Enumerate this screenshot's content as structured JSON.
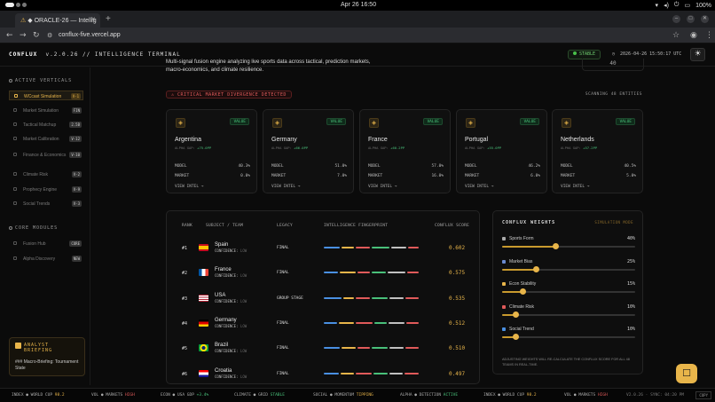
{
  "os": {
    "date": "Apr 26  16:50",
    "battery": "100%"
  },
  "browser": {
    "tab_title": "◆ ORACLE-26 — Intellig",
    "url": "conflux-five.vercel.app"
  },
  "header": {
    "logo": "CONFLUX",
    "version": "v.2.0.26 // INTELLIGENCE TERMINAL",
    "status": "STABLE",
    "clock": "2026-04-26 15:50:17 UTC"
  },
  "sidebar": {
    "section1": "ACTIVE VERTICALS",
    "items": [
      {
        "label": "WCcast Simulation",
        "badge": "V-1"
      },
      {
        "label": "Market Simulation",
        "badge": "FIN"
      },
      {
        "label": "Tactical Matchup",
        "badge": "2.5B"
      },
      {
        "label": "Market Calibration",
        "badge": "V-12"
      },
      {
        "label": "Finance & Economics",
        "badge": "V-10"
      },
      {
        "label": "Climate Risk",
        "badge": "V-2"
      },
      {
        "label": "Prophecy Engine",
        "badge": "V-9"
      },
      {
        "label": "Social Trends",
        "badge": "V-3"
      }
    ],
    "section2": "CORE MODULES",
    "modules": [
      {
        "label": "Fusion Hub",
        "badge": "CORE"
      },
      {
        "label": "Alpha Discovery",
        "badge": "NEW"
      }
    ],
    "briefing": {
      "title": "ANALYST BRIEFING",
      "desc": "### Macro-Briefing: Tournament State"
    }
  },
  "main": {
    "intro_line1": "Multi-signal fusion engine analyzing live sports data across tactical, prediction markets,",
    "intro_line2": "macro-economics, and climate resilience.",
    "fade_value": "40",
    "alert": "CRITICAL MARKET DIVERGENCE DETECTED",
    "scanning": "SCANNING 48 ENTITIES",
    "cards": [
      {
        "name": "Argentina",
        "badge": "VALUE",
        "alpha_label": "ALPHA GAP:",
        "alpha": "+75.0PP",
        "model": "40.3%",
        "market": "0.0%",
        "view": "VIEW INTEL"
      },
      {
        "name": "Germany",
        "badge": "VALUE",
        "alpha_label": "ALPHA GAP:",
        "alpha": "+66.0PP",
        "model": "51.0%",
        "market": "7.0%",
        "view": "VIEW INTEL"
      },
      {
        "name": "France",
        "badge": "VALUE",
        "alpha_label": "ALPHA GAP:",
        "alpha": "+60.2PP",
        "model": "57.0%",
        "market": "16.0%",
        "view": "VIEW INTEL"
      },
      {
        "name": "Portugal",
        "badge": "VALUE",
        "alpha_label": "ALPHA GAP:",
        "alpha": "+55.0PP",
        "model": "46.2%",
        "market": "6.0%",
        "view": "VIEW INTEL"
      },
      {
        "name": "Netherlands",
        "badge": "VALUE",
        "alpha_label": "ALPHA GAP:",
        "alpha": "+57.2PP",
        "model": "40.5%",
        "market": "5.0%",
        "view": "VIEW INTEL"
      }
    ],
    "model_label": "MODEL",
    "market_label": "MARKET"
  },
  "table": {
    "headers": [
      "RANK",
      "SUBJECT / TEAM",
      "LEGACY",
      "INTELLIGENCE FINGERPRINT",
      "CONFLUX SCORE"
    ],
    "conf_label": "CONFIDENCE:",
    "conf_value": "LOW",
    "rows": [
      {
        "rank": "#1",
        "team": "Spain",
        "legacy": "FINAL",
        "score": "0.602"
      },
      {
        "rank": "#2",
        "team": "France",
        "legacy": "FINAL",
        "score": "0.575"
      },
      {
        "rank": "#3",
        "team": "USA",
        "legacy": "GROUP STAGE",
        "score": "0.535"
      },
      {
        "rank": "#4",
        "team": "Germany",
        "legacy": "FINAL",
        "score": "0.512"
      },
      {
        "rank": "#5",
        "team": "Brazil",
        "legacy": "FINAL",
        "score": "0.510"
      },
      {
        "rank": "#6",
        "team": "Croatia",
        "legacy": "FINAL",
        "score": "0.497"
      }
    ]
  },
  "weights": {
    "title": "CONFLUX WEIGHTS",
    "mode": "SIMULATION MODE",
    "items": [
      {
        "label": "Sports Form",
        "pct": "40%",
        "value": 0.4
      },
      {
        "label": "Market Bias",
        "pct": "25%",
        "value": 0.25
      },
      {
        "label": "Econ Stability",
        "pct": "15%",
        "value": 0.15
      },
      {
        "label": "Climate Risk",
        "pct": "10%",
        "value": 0.1
      },
      {
        "label": "Social Trend",
        "pct": "10%",
        "value": 0.1
      }
    ],
    "note": "ADJUSTING WEIGHTS WILL RE-CALCULATE THE CONFLUX SCORE FOR ALL 48 TEAMS IN REAL-TIME."
  },
  "ticker": [
    {
      "label": "INDEX ● WORLD CUP",
      "value": "98.2",
      "color": "#e8b54a"
    },
    {
      "label": "VOL ● MARKETS",
      "value": "HIGH",
      "color": "#e05a5a"
    },
    {
      "label": "ECON ● USA GDP",
      "value": "+3.4%",
      "color": "#49c07a"
    },
    {
      "label": "CLIMATE ● GRID",
      "value": "STABLE",
      "color": "#49c07a"
    },
    {
      "label": "SOCIAL ● MOMENTUM",
      "value": "TIPPING",
      "color": "#e8b54a"
    },
    {
      "label": "ALPHA ● DETECTION",
      "value": "ACTIVE",
      "color": "#49c07a"
    },
    {
      "label": "INDEX ● WORLD CUP",
      "value": "98.2",
      "color": "#e8b54a"
    },
    {
      "label": "VOL ● MARKETS",
      "value": "HIGH",
      "color": "#e05a5a"
    }
  ],
  "ticker_right": "V2.0.26 · SYNC: 04:20 PM",
  "ticker_btn": "COPY"
}
